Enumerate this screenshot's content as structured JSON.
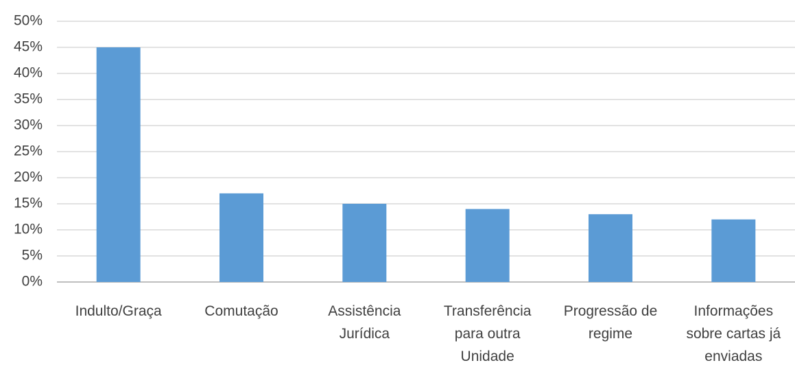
{
  "chart_data": {
    "type": "bar",
    "categories": [
      "Indulto/Graça",
      "Comutação",
      "Assistência Jurídica",
      "Transferência para outra Unidade",
      "Progressão de regime",
      "Informações sobre cartas já enviadas"
    ],
    "values": [
      45,
      17,
      15,
      14,
      13,
      12
    ],
    "color": "#5b9bd5",
    "ylim": [
      0,
      50
    ],
    "yticks": [
      {
        "value": 0,
        "label": "0%"
      },
      {
        "value": 5,
        "label": "5%"
      },
      {
        "value": 10,
        "label": "10%"
      },
      {
        "value": 15,
        "label": "15%"
      },
      {
        "value": 20,
        "label": "20%"
      },
      {
        "value": 25,
        "label": "25%"
      },
      {
        "value": 30,
        "label": "30%"
      },
      {
        "value": 35,
        "label": "35%"
      },
      {
        "value": 40,
        "label": "40%"
      },
      {
        "value": 45,
        "label": "45%"
      },
      {
        "value": 50,
        "label": "50%"
      }
    ],
    "grid": true
  }
}
